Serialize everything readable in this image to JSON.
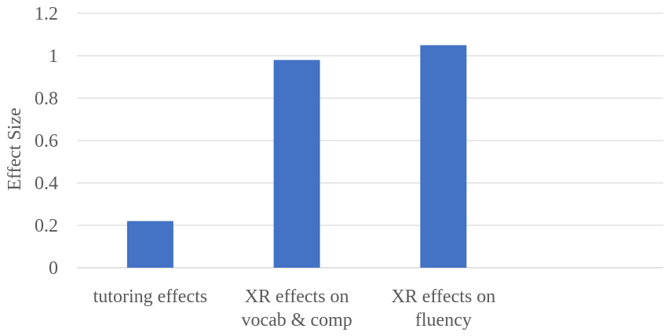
{
  "chart_data": {
    "type": "bar",
    "categories": [
      [
        "tutoring effects"
      ],
      [
        "XR effects on",
        "vocab & comp"
      ],
      [
        "XR effects on",
        "fluency"
      ],
      [
        ""
      ]
    ],
    "values": [
      0.22,
      0.98,
      1.05,
      null
    ],
    "ylabel": "Effect  Size",
    "xlabel": "",
    "ylim": [
      0,
      1.2
    ],
    "yticks": [
      "0",
      "0.2",
      "0.4",
      "0.6",
      "0.8",
      "1",
      "1.2"
    ],
    "grid": true,
    "legend": "none",
    "bar_color": "#4472c4"
  }
}
